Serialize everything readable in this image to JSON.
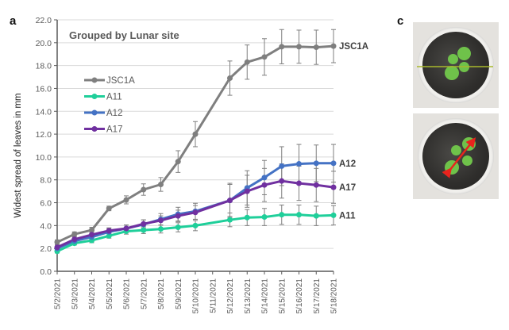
{
  "panels": {
    "a_label": "a",
    "c_label": "c"
  },
  "chart_data": {
    "type": "line",
    "title": "Grouped by Lunar site",
    "xlabel": "",
    "ylabel": "Widest spread of leaves in mm",
    "ylim": [
      0,
      22
    ],
    "ytick_step": 2,
    "ytick_labels": [
      "0.0",
      "2.0",
      "4.0",
      "6.0",
      "8.0",
      "10.0",
      "12.0",
      "14.0",
      "16.0",
      "18.0",
      "20.0",
      "22.0"
    ],
    "grid": true,
    "legend_position": "top-left",
    "categories": [
      "5/2/2021",
      "5/3/2021",
      "5/4/2021",
      "5/5/2021",
      "5/6/2021",
      "5/7/2021",
      "5/8/2021",
      "5/9/2021",
      "5/10/2021",
      "5/11/2021",
      "5/12/2021",
      "5/13/2021",
      "5/14/2021",
      "5/15/2021",
      "5/16/2021",
      "5/17/2021",
      "5/18/2021"
    ],
    "series": [
      {
        "name": "JSC1A",
        "color": "#7f7f7f",
        "end_label": "JSC1A",
        "values": [
          2.55,
          3.25,
          3.6,
          5.5,
          6.25,
          7.15,
          7.6,
          9.6,
          12.0,
          null,
          16.9,
          18.3,
          18.75,
          19.65,
          19.65,
          19.6,
          19.7
        ],
        "errors": [
          0.2,
          0.2,
          0.25,
          0.2,
          0.35,
          0.5,
          0.6,
          0.95,
          1.1,
          null,
          1.5,
          1.5,
          1.6,
          1.5,
          1.45,
          1.5,
          1.45
        ]
      },
      {
        "name": "A11",
        "color": "#1fcf9a",
        "end_label": "A11",
        "values": [
          1.75,
          2.45,
          2.7,
          3.1,
          3.5,
          3.6,
          3.7,
          3.85,
          4.0,
          null,
          4.5,
          4.7,
          4.75,
          4.95,
          4.95,
          4.85,
          4.9
        ],
        "errors": [
          0.15,
          0.15,
          0.2,
          0.2,
          0.25,
          0.3,
          0.35,
          0.4,
          0.45,
          null,
          0.6,
          0.7,
          0.75,
          0.85,
          0.85,
          0.85,
          0.85
        ]
      },
      {
        "name": "A12",
        "color": "#4472c4",
        "end_label": "A12",
        "values": [
          2.0,
          2.65,
          3.0,
          3.45,
          3.75,
          4.1,
          4.55,
          5.0,
          5.25,
          null,
          6.2,
          7.3,
          8.2,
          9.2,
          9.4,
          9.45,
          9.45
        ],
        "errors": [
          0.2,
          0.2,
          0.25,
          0.3,
          0.3,
          0.4,
          0.5,
          0.6,
          0.7,
          null,
          1.5,
          1.5,
          1.5,
          1.7,
          1.7,
          1.6,
          1.65
        ]
      },
      {
        "name": "A17",
        "color": "#7030a0",
        "end_label": "A17",
        "values": [
          2.1,
          2.8,
          3.2,
          3.55,
          3.75,
          4.15,
          4.45,
          4.85,
          5.15,
          null,
          6.2,
          7.0,
          7.55,
          7.9,
          7.7,
          7.55,
          7.35
        ],
        "errors": [
          0.2,
          0.2,
          0.25,
          0.25,
          0.3,
          0.35,
          0.4,
          0.5,
          0.6,
          null,
          1.4,
          1.4,
          1.45,
          1.5,
          1.5,
          1.45,
          1.4
        ]
      }
    ]
  },
  "photos": [
    {
      "name": "plant-photo-horizontal-measure",
      "overlay": "horizontal-line",
      "overlay_color": "#a8b82c"
    },
    {
      "name": "plant-photo-diagonal-measure",
      "overlay": "double-arrow",
      "overlay_color": "#e8231d"
    }
  ]
}
